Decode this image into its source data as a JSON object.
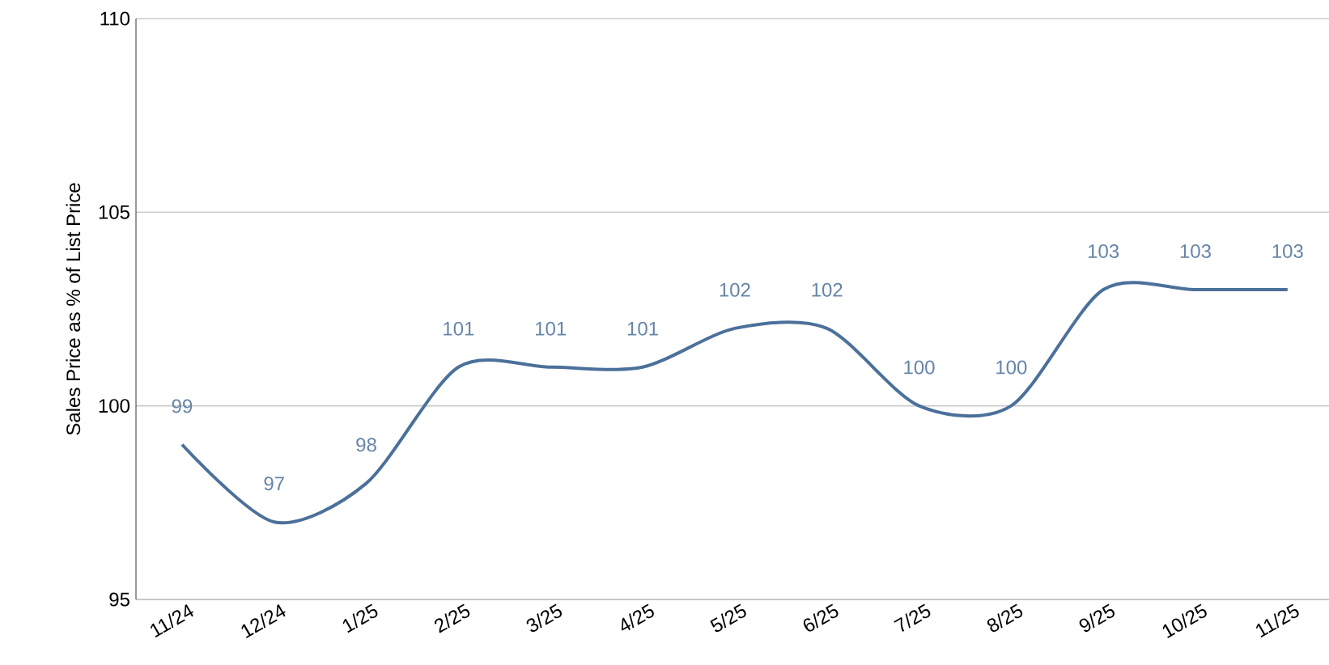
{
  "chart_data": {
    "type": "line",
    "ylabel": "Sales Price as % of List Price",
    "categories": [
      "11/24",
      "12/24",
      "1/25",
      "2/25",
      "3/25",
      "4/25",
      "5/25",
      "6/25",
      "7/25",
      "8/25",
      "9/25",
      "10/25",
      "11/25"
    ],
    "series": [
      {
        "color": "#4b709a",
        "values": [
          99,
          97,
          98,
          101,
          101,
          101,
          102,
          102,
          100,
          100,
          103,
          103,
          103
        ]
      }
    ],
    "ylim": [
      95,
      110
    ],
    "yticks": [
      95,
      100,
      105,
      110
    ],
    "grid": "y",
    "data_labels": true,
    "marker": "none",
    "line_style": "solid"
  }
}
